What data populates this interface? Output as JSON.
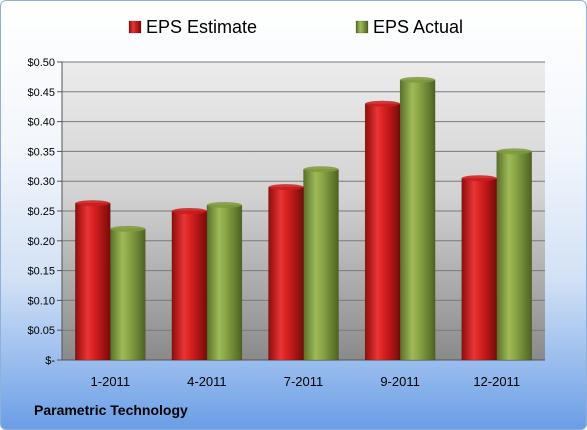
{
  "company": "Parametric Technology",
  "chart_data": {
    "type": "bar",
    "categories": [
      "1-2011",
      "4-2011",
      "7-2011",
      "9-2011",
      "12-2011"
    ],
    "series": [
      {
        "name": "EPS Estimate",
        "color": "#cc1c1c",
        "values": [
          0.263,
          0.25,
          0.29,
          0.43,
          0.305
        ]
      },
      {
        "name": "EPS Actual",
        "color": "#7f9a3c",
        "values": [
          0.22,
          0.26,
          0.32,
          0.47,
          0.35
        ]
      }
    ],
    "y_ticks": [
      "$-",
      "$0.05",
      "$0.10",
      "$0.15",
      "$0.20",
      "$0.25",
      "$0.30",
      "$0.35",
      "$0.40",
      "$0.45",
      "$0.50"
    ],
    "ylim": [
      0,
      0.5
    ],
    "grid": true,
    "legend_position": "top"
  }
}
